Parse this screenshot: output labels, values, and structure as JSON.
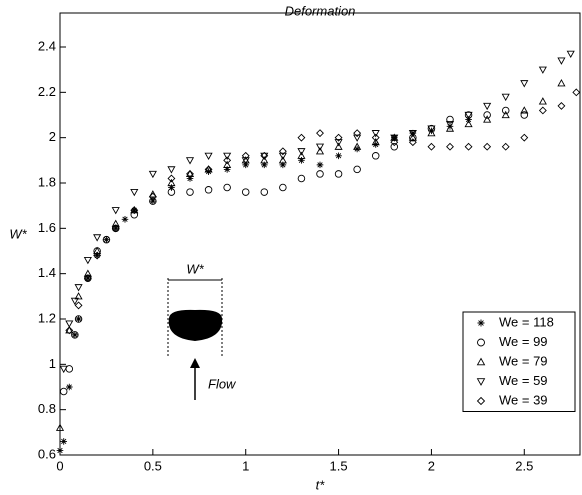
{
  "chart_data": {
    "type": "scatter",
    "title": "Deformation",
    "x_label": "t*",
    "y_label": "W*",
    "annotations": [
      "W*",
      "Flow"
    ],
    "xlim": [
      0,
      2.8
    ],
    "ylim": [
      0.6,
      2.55
    ],
    "xticks": [
      0,
      0.5,
      1,
      1.5,
      2,
      2.5
    ],
    "yticks": [
      0.6,
      0.8,
      1,
      1.2,
      1.4,
      1.6,
      1.8,
      2,
      2.2,
      2.4
    ],
    "legend": "lower right",
    "series": [
      {
        "name": "We = 118",
        "marker": "asterisk",
        "color": "#000000",
        "x": [
          0,
          0.02,
          0.05,
          0.08,
          0.1,
          0.15,
          0.2,
          0.25,
          0.3,
          0.35,
          0.4,
          0.5,
          0.6,
          0.7,
          0.8,
          0.9,
          1.0,
          1.1,
          1.2,
          1.3,
          1.4,
          1.5,
          1.6,
          1.7,
          1.8,
          1.9,
          2.0,
          2.1,
          2.2
        ],
        "values": [
          0.62,
          0.66,
          0.9,
          1.13,
          1.2,
          1.38,
          1.48,
          1.55,
          1.6,
          1.64,
          1.68,
          1.72,
          1.78,
          1.82,
          1.85,
          1.86,
          1.88,
          1.88,
          1.88,
          1.9,
          1.88,
          1.92,
          1.95,
          1.97,
          2.0,
          2.02,
          2.03,
          2.05,
          2.08
        ]
      },
      {
        "name": "We = 99",
        "marker": "circle",
        "color": "#000000",
        "x": [
          0.02,
          0.05,
          0.08,
          0.1,
          0.15,
          0.2,
          0.25,
          0.3,
          0.4,
          0.5,
          0.6,
          0.7,
          0.8,
          0.9,
          1.0,
          1.1,
          1.2,
          1.3,
          1.4,
          1.5,
          1.6,
          1.7,
          1.8,
          1.9,
          2.0,
          2.1,
          2.2,
          2.3,
          2.4,
          2.5
        ],
        "values": [
          0.88,
          0.98,
          1.13,
          1.2,
          1.38,
          1.5,
          1.55,
          1.6,
          1.66,
          1.72,
          1.76,
          1.76,
          1.77,
          1.78,
          1.76,
          1.76,
          1.78,
          1.82,
          1.84,
          1.84,
          1.86,
          1.92,
          1.96,
          2.0,
          2.04,
          2.08,
          2.1,
          2.1,
          2.12,
          2.1
        ]
      },
      {
        "name": "We = 79",
        "marker": "triangle-up",
        "color": "#000000",
        "x": [
          0,
          0.05,
          0.1,
          0.15,
          0.2,
          0.3,
          0.4,
          0.5,
          0.6,
          0.7,
          0.8,
          0.9,
          1.0,
          1.1,
          1.2,
          1.3,
          1.4,
          1.5,
          1.6,
          1.7,
          1.8,
          1.9,
          2.0,
          2.1,
          2.2,
          2.3,
          2.4,
          2.5,
          2.6,
          2.7
        ],
        "values": [
          0.72,
          1.15,
          1.3,
          1.4,
          1.5,
          1.62,
          1.68,
          1.75,
          1.8,
          1.84,
          1.86,
          1.88,
          1.9,
          1.9,
          1.9,
          1.92,
          1.94,
          1.96,
          1.96,
          1.98,
          2.0,
          2.0,
          2.02,
          2.04,
          2.06,
          2.08,
          2.1,
          2.12,
          2.16,
          2.24
        ]
      },
      {
        "name": "We = 59",
        "marker": "triangle-down",
        "color": "#000000",
        "x": [
          0.02,
          0.05,
          0.08,
          0.1,
          0.15,
          0.2,
          0.3,
          0.4,
          0.5,
          0.6,
          0.7,
          0.8,
          0.9,
          1.0,
          1.1,
          1.2,
          1.3,
          1.4,
          1.5,
          1.6,
          1.7,
          1.8,
          1.9,
          2.0,
          2.1,
          2.2,
          2.3,
          2.4,
          2.5,
          2.6,
          2.7,
          2.75
        ],
        "values": [
          0.98,
          1.18,
          1.28,
          1.34,
          1.46,
          1.56,
          1.68,
          1.76,
          1.84,
          1.86,
          1.9,
          1.92,
          1.92,
          1.9,
          1.92,
          1.92,
          1.94,
          1.96,
          1.98,
          2.0,
          2.02,
          2.0,
          2.02,
          2.04,
          2.06,
          2.1,
          2.14,
          2.18,
          2.24,
          2.3,
          2.34,
          2.37
        ]
      },
      {
        "name": "We = 39",
        "marker": "diamond",
        "color": "#000000",
        "x": [
          0.05,
          0.1,
          0.15,
          0.2,
          0.3,
          0.4,
          0.5,
          0.6,
          0.7,
          0.8,
          0.9,
          1.0,
          1.1,
          1.2,
          1.3,
          1.4,
          1.5,
          1.6,
          1.7,
          1.8,
          1.9,
          2.0,
          2.1,
          2.2,
          2.3,
          2.4,
          2.5,
          2.6,
          2.7,
          2.78
        ],
        "values": [
          1.15,
          1.26,
          1.38,
          1.48,
          1.6,
          1.68,
          1.74,
          1.82,
          1.84,
          1.86,
          1.9,
          1.92,
          1.92,
          1.94,
          2.0,
          2.02,
          2.0,
          2.02,
          2.0,
          1.98,
          1.98,
          1.96,
          1.96,
          1.96,
          1.96,
          1.96,
          2.0,
          2.12,
          2.14,
          2.2
        ]
      }
    ]
  }
}
